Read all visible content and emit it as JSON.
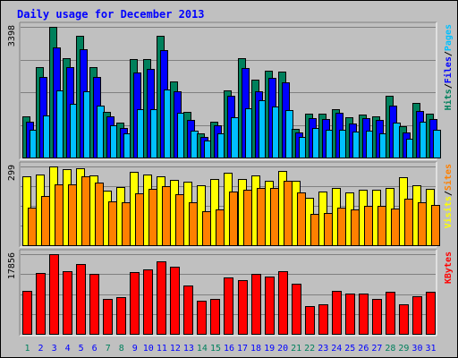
{
  "chart_data": {
    "type": "bar",
    "title": "Daily usage for December 2013",
    "categories": [
      "1",
      "2",
      "3",
      "4",
      "5",
      "6",
      "7",
      "8",
      "9",
      "10",
      "11",
      "12",
      "13",
      "14",
      "15",
      "16",
      "17",
      "18",
      "19",
      "20",
      "21",
      "22",
      "23",
      "24",
      "25",
      "26",
      "27",
      "28",
      "29",
      "30",
      "31"
    ],
    "weekend_days": [
      1,
      7,
      8,
      14,
      15,
      21,
      22,
      28,
      29
    ],
    "panels": [
      {
        "name": "top",
        "max_label": "3398",
        "ymax": 3398,
        "ylim": [
          0,
          3398
        ],
        "axis_labels": [
          {
            "text": "Pages",
            "color": "#00c0ff"
          },
          {
            "text": "Files",
            "color": "#0000ff"
          },
          {
            "text": "Hits",
            "color": "#00805c"
          }
        ],
        "series": [
          {
            "name": "Hits",
            "color": "#00805c",
            "values": [
              1076,
              2345,
              3398,
              2591,
              3171,
              2345,
              1180,
              904,
              2562,
              2562,
              3160,
              1982,
              1191,
              635,
              928,
              1740,
              2592,
              2036,
              2263,
              2224,
              742,
              1138,
              1151,
              1256,
              1039,
              1126,
              1076,
              1614,
              804,
              1420,
              1147
            ]
          },
          {
            "name": "Files",
            "color": "#0000ff",
            "values": [
              940,
              2103,
              2862,
              2350,
              2818,
              2096,
              1068,
              770,
              2200,
              2305,
              2785,
              1712,
              978,
              535,
              829,
              1604,
              2325,
              1722,
              2080,
              1965,
              645,
              1019,
              1009,
              1154,
              876,
              1032,
              970,
              1354,
              653,
              1212,
              1000
            ]
          },
          {
            "name": "Pages",
            "color": "#00c0ff",
            "values": [
              718,
              1104,
              1742,
              1396,
              1732,
              1352,
              841,
              618,
              1254,
              1260,
              1766,
              1155,
              702,
              451,
              633,
              1051,
              1271,
              1487,
              1315,
              1235,
              535,
              776,
              731,
              724,
              664,
              702,
              621,
              900,
              484,
              935,
              726
            ]
          }
        ]
      },
      {
        "name": "middle",
        "max_label": "299",
        "ymax": 299,
        "ylim": [
          0,
          299
        ],
        "axis_labels": [
          {
            "text": "Sites",
            "color": "#ff8000"
          },
          {
            "text": "Visits",
            "color": "#ffff00"
          }
        ],
        "series": [
          {
            "name": "Visits",
            "color": "#ffff00",
            "values": [
              261,
              270,
              299,
              288,
              291,
              266,
              208,
              222,
              277,
              268,
              263,
              247,
              242,
              226,
              250,
              275,
              252,
              264,
              244,
              283,
              246,
              181,
              203,
              219,
              200,
              211,
              210,
              217,
              257,
              228,
              213
            ]
          },
          {
            "name": "Sites",
            "color": "#ff8000",
            "values": [
              143,
              186,
              232,
              232,
              260,
              238,
              168,
              162,
              196,
              214,
              223,
              193,
              162,
              130,
              136,
              204,
              211,
              219,
              219,
              244,
              201,
              118,
              121,
              144,
              135,
              149,
              151,
              138,
              176,
              163,
              152
            ]
          }
        ]
      },
      {
        "name": "bottom",
        "max_label": "17856",
        "ymax": 17856,
        "ylim": [
          0,
          17856
        ],
        "axis_labels": [
          {
            "text": "KBytes",
            "color": "#ff0000"
          }
        ],
        "series": [
          {
            "name": "KBytes",
            "color": "#ff0000",
            "values": [
              9620,
              13742,
              17856,
              14015,
              15640,
              13511,
              7913,
              8319,
              13911,
              14356,
              16315,
              15136,
              10858,
              7364,
              7895,
              12571,
              12104,
              13467,
              12792,
              14015,
              11227,
              6217,
              6622,
              9620,
              8954,
              9079,
              7895,
              9338,
              6622,
              8463,
              9338
            ]
          }
        ]
      }
    ]
  }
}
